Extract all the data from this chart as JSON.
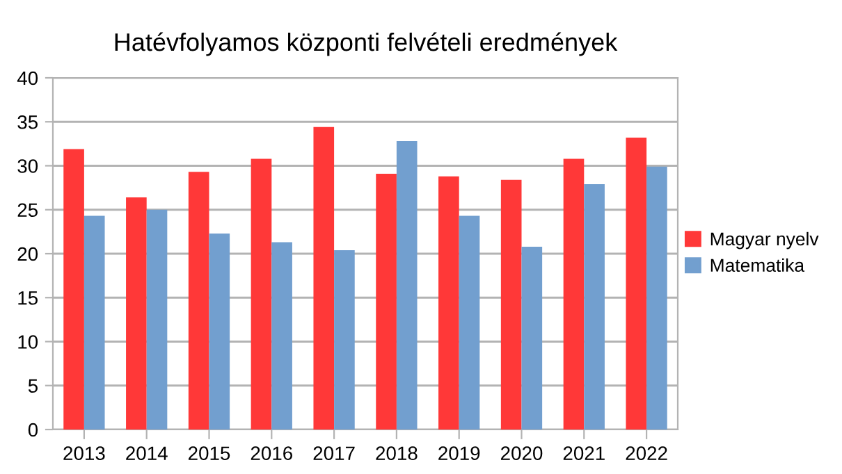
{
  "chart_data": {
    "type": "bar",
    "title": "Hatévfolyamos központi felvételi eredmények",
    "categories": [
      "2013",
      "2014",
      "2015",
      "2016",
      "2017",
      "2018",
      "2019",
      "2020",
      "2021",
      "2022"
    ],
    "series": [
      {
        "name": "Magyar nyelv",
        "color": "#ff3838",
        "values": [
          31.9,
          26.4,
          29.3,
          30.8,
          34.4,
          29.1,
          28.8,
          28.4,
          30.8,
          33.2
        ]
      },
      {
        "name": "Matematika",
        "color": "#729fcf",
        "values": [
          24.3,
          25.0,
          22.3,
          21.3,
          20.4,
          32.8,
          24.3,
          20.8,
          27.9,
          29.9
        ]
      }
    ],
    "ylim": [
      0,
      40
    ],
    "yticks": [
      0,
      5,
      10,
      15,
      20,
      25,
      30,
      35,
      40
    ],
    "grid": "y",
    "legend": "right"
  }
}
